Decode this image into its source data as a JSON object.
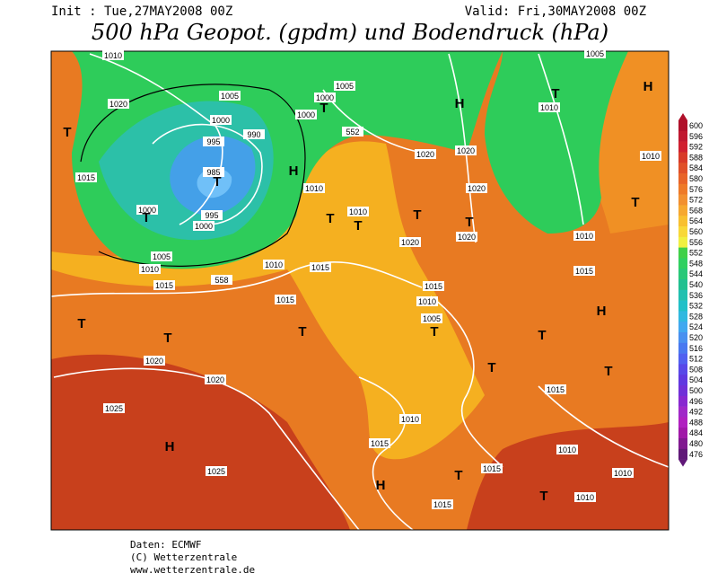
{
  "header": {
    "init": "Init : Tue,27MAY2008 00Z",
    "valid": "Valid: Fri,30MAY2008 00Z",
    "title": "500 hPa Geopot. (gpdm) und Bodendruck (hPa)"
  },
  "map": {
    "pressure_labels": [
      "1010",
      "1020",
      "1015",
      "1005",
      "1000",
      "995",
      "985",
      "995",
      "1000",
      "990",
      "1000",
      "1005",
      "1010",
      "1015",
      "558",
      "1010",
      "1015",
      "1015",
      "1005",
      "1000",
      "1000",
      "552",
      "1010",
      "1010",
      "1020",
      "1020",
      "1020",
      "1020",
      "1020",
      "1015",
      "1010",
      "1005",
      "1020",
      "1020",
      "1025",
      "1025",
      "1010",
      "1015",
      "1015",
      "1015",
      "1010",
      "1010",
      "1010",
      "1015",
      "1015",
      "1010",
      "1005",
      "1010",
      "1010"
    ],
    "centers": [
      "T",
      "T",
      "T",
      "H",
      "T",
      "T",
      "T",
      "H",
      "T",
      "H",
      "T",
      "T",
      "T",
      "T",
      "H",
      "T",
      "T",
      "T",
      "H",
      "T",
      "H",
      "T",
      "T",
      "T",
      "T"
    ]
  },
  "colorbar": {
    "labels": [
      "600",
      "596",
      "592",
      "588",
      "584",
      "580",
      "576",
      "572",
      "568",
      "564",
      "560",
      "556",
      "552",
      "548",
      "544",
      "540",
      "536",
      "532",
      "528",
      "524",
      "520",
      "516",
      "512",
      "508",
      "504",
      "500",
      "496",
      "492",
      "488",
      "484",
      "480",
      "476"
    ],
    "colors": [
      "#b0102a",
      "#c01830",
      "#d02030",
      "#d83a28",
      "#e05028",
      "#e86428",
      "#ee7a28",
      "#f29030",
      "#f6a830",
      "#f8c030",
      "#f8d838",
      "#f0f040",
      "#40d048",
      "#30d060",
      "#28c878",
      "#20c090",
      "#20c0b0",
      "#20c0c8",
      "#30b8e0",
      "#40a8f0",
      "#4890f0",
      "#4878f0",
      "#5060f0",
      "#5848e8",
      "#6038e0",
      "#7030d8",
      "#8828d0",
      "#a028c8",
      "#b020c0",
      "#a018a8",
      "#801890",
      "#601878"
    ]
  },
  "footer": [
    "Daten: ECMWF",
    "(C) Wetterzentrale",
    "www.wetterzentrale.de"
  ]
}
